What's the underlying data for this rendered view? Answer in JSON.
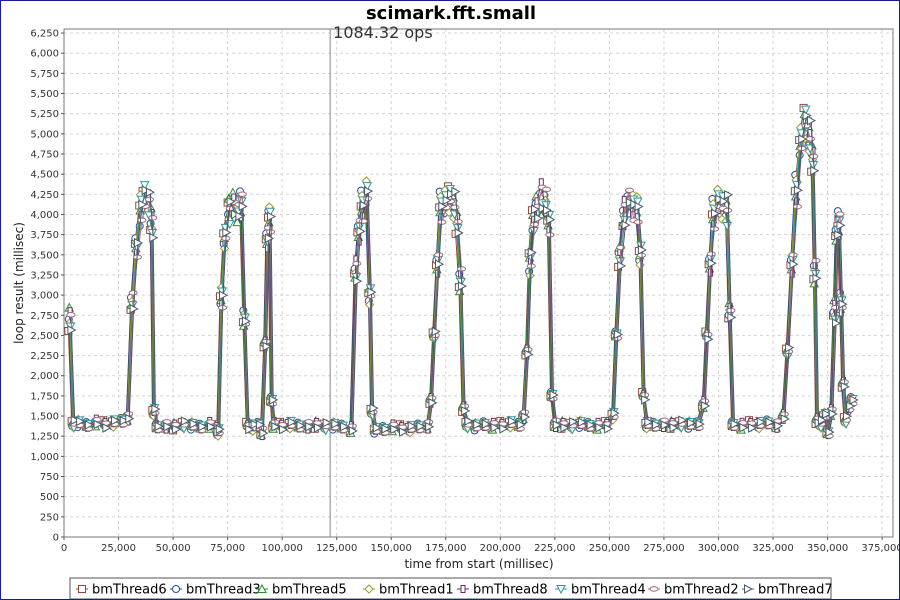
{
  "chart_data": {
    "type": "line",
    "title": "scimark.fft.small",
    "xlabel": "time from start (millisec)",
    "ylabel": "loop result (millisec)",
    "xlim": [
      0,
      380000
    ],
    "ylim": [
      0,
      6300
    ],
    "x_ticks": [
      "0",
      "25,000",
      "50,000",
      "75,000",
      "100,000",
      "125,000",
      "150,000",
      "175,000",
      "200,000",
      "225,000",
      "250,000",
      "275,000",
      "300,000",
      "325,000",
      "350,000",
      "375,000"
    ],
    "y_ticks": [
      "0",
      "250",
      "500",
      "750",
      "1,000",
      "1,250",
      "1,500",
      "1,750",
      "2,000",
      "2,250",
      "2,500",
      "2,750",
      "3,000",
      "3,250",
      "3,500",
      "3,750",
      "4,000",
      "4,250",
      "4,500",
      "4,750",
      "5,000",
      "5,250",
      "5,500",
      "5,750",
      "6,000",
      "6,250"
    ],
    "grid": true,
    "legend_position": "bottom",
    "annotation": {
      "x": 122000,
      "text": "1084.32 ops"
    },
    "series": [
      {
        "name": "bmThread6",
        "color": "#8c4a3a",
        "marker": "square",
        "offset": 0
      },
      {
        "name": "bmThread3",
        "color": "#2a4a9c",
        "marker": "circle",
        "offset": 200
      },
      {
        "name": "bmThread5",
        "color": "#2e8a2e",
        "marker": "triangle-up",
        "offset": 400
      },
      {
        "name": "bmThread1",
        "color": "#9a9a2a",
        "marker": "diamond",
        "offset": 600
      },
      {
        "name": "bmThread8",
        "color": "#6a2a6a",
        "marker": "rect",
        "offset": 800
      },
      {
        "name": "bmThread4",
        "color": "#2a9a9a",
        "marker": "triangle-down",
        "offset": 1000
      },
      {
        "name": "bmThread2",
        "color": "#a06a7a",
        "marker": "hcircle",
        "offset": 1200
      },
      {
        "name": "bmThread7",
        "color": "#4a5a6a",
        "marker": "triangle-right",
        "offset": 1400
      }
    ],
    "base_profile": [
      [
        2000,
        2700
      ],
      [
        3500,
        1400
      ],
      [
        6000,
        1410
      ],
      [
        10000,
        1390
      ],
      [
        14000,
        1420
      ],
      [
        18000,
        1400
      ],
      [
        22000,
        1410
      ],
      [
        26000,
        1430
      ],
      [
        28500,
        1480
      ],
      [
        30500,
        2900
      ],
      [
        32500,
        3600
      ],
      [
        34500,
        4050
      ],
      [
        36000,
        4200
      ],
      [
        38000,
        4150
      ],
      [
        39500,
        3900
      ],
      [
        40500,
        1550
      ],
      [
        42000,
        1360
      ],
      [
        46000,
        1380
      ],
      [
        50000,
        1370
      ],
      [
        54000,
        1390
      ],
      [
        58000,
        1380
      ],
      [
        62000,
        1370
      ],
      [
        66000,
        1390
      ],
      [
        69000,
        1350
      ],
      [
        70000,
        1300
      ],
      [
        71500,
        2950
      ],
      [
        73000,
        3700
      ],
      [
        75000,
        4050
      ],
      [
        77000,
        4100
      ],
      [
        79000,
        4050
      ],
      [
        80500,
        4150
      ],
      [
        82000,
        2700
      ],
      [
        83500,
        1380
      ],
      [
        86000,
        1360
      ],
      [
        88500,
        1380
      ],
      [
        90000,
        1300
      ],
      [
        91500,
        2400
      ],
      [
        92500,
        3700
      ],
      [
        93500,
        3950
      ],
      [
        94500,
        1700
      ],
      [
        95500,
        1390
      ],
      [
        99000,
        1380
      ],
      [
        103000,
        1390
      ],
      [
        107000,
        1370
      ],
      [
        111000,
        1380
      ],
      [
        115000,
        1390
      ],
      [
        119000,
        1370
      ],
      [
        123000,
        1380
      ],
      [
        127000,
        1370
      ],
      [
        131000,
        1340
      ],
      [
        133000,
        3300
      ],
      [
        134500,
        3800
      ],
      [
        136000,
        4100
      ],
      [
        138000,
        4250
      ],
      [
        139500,
        3000
      ],
      [
        140500,
        1550
      ],
      [
        142000,
        1330
      ],
      [
        146000,
        1340
      ],
      [
        150000,
        1360
      ],
      [
        154000,
        1350
      ],
      [
        158000,
        1340
      ],
      [
        162000,
        1360
      ],
      [
        166000,
        1380
      ],
      [
        167500,
        1700
      ],
      [
        169000,
        2500
      ],
      [
        170500,
        3400
      ],
      [
        172000,
        4100
      ],
      [
        174000,
        4150
      ],
      [
        176000,
        4200
      ],
      [
        178000,
        4100
      ],
      [
        179500,
        3900
      ],
      [
        181000,
        3200
      ],
      [
        182500,
        1600
      ],
      [
        184000,
        1390
      ],
      [
        188000,
        1370
      ],
      [
        192000,
        1400
      ],
      [
        196000,
        1380
      ],
      [
        200000,
        1390
      ],
      [
        204000,
        1400
      ],
      [
        208000,
        1380
      ],
      [
        210000,
        1500
      ],
      [
        211500,
        2300
      ],
      [
        213000,
        3400
      ],
      [
        214500,
        3900
      ],
      [
        216000,
        4100
      ],
      [
        218000,
        4200
      ],
      [
        220000,
        4150
      ],
      [
        221500,
        3900
      ],
      [
        223000,
        1750
      ],
      [
        224500,
        1400
      ],
      [
        228000,
        1390
      ],
      [
        232000,
        1380
      ],
      [
        236000,
        1400
      ],
      [
        240000,
        1390
      ],
      [
        244000,
        1380
      ],
      [
        248000,
        1390
      ],
      [
        251000,
        1500
      ],
      [
        252500,
        2500
      ],
      [
        254000,
        3500
      ],
      [
        256000,
        4000
      ],
      [
        258000,
        4150
      ],
      [
        260000,
        4100
      ],
      [
        262000,
        4050
      ],
      [
        263500,
        3500
      ],
      [
        265000,
        1750
      ],
      [
        266500,
        1390
      ],
      [
        270000,
        1380
      ],
      [
        274000,
        1400
      ],
      [
        278000,
        1390
      ],
      [
        282000,
        1400
      ],
      [
        286000,
        1390
      ],
      [
        290000,
        1400
      ],
      [
        292500,
        1650
      ],
      [
        294000,
        2500
      ],
      [
        295500,
        3400
      ],
      [
        297000,
        4000
      ],
      [
        299000,
        4150
      ],
      [
        301000,
        4100
      ],
      [
        303000,
        4050
      ],
      [
        304500,
        2800
      ],
      [
        306000,
        1400
      ],
      [
        310000,
        1380
      ],
      [
        314000,
        1400
      ],
      [
        318000,
        1390
      ],
      [
        322000,
        1410
      ],
      [
        326000,
        1390
      ],
      [
        329000,
        1500
      ],
      [
        331000,
        2300
      ],
      [
        333000,
        3400
      ],
      [
        335000,
        4300
      ],
      [
        337000,
        4900
      ],
      [
        339000,
        5150
      ],
      [
        341000,
        4950
      ],
      [
        342500,
        4700
      ],
      [
        343500,
        3300
      ],
      [
        344500,
        1450
      ],
      [
        346000,
        1400
      ],
      [
        348000,
        1500
      ],
      [
        349500,
        1300
      ],
      [
        351000,
        1550
      ],
      [
        352500,
        2800
      ],
      [
        353500,
        3800
      ],
      [
        354500,
        3900
      ],
      [
        355500,
        2900
      ],
      [
        356500,
        1900
      ],
      [
        357500,
        1450
      ],
      [
        359000,
        1600
      ],
      [
        360500,
        1700
      ]
    ]
  },
  "legend": {
    "items": [
      "bmThread6",
      "bmThread3",
      "bmThread5",
      "bmThread1",
      "bmThread8",
      "bmThread4",
      "bmThread2",
      "bmThread7"
    ]
  }
}
